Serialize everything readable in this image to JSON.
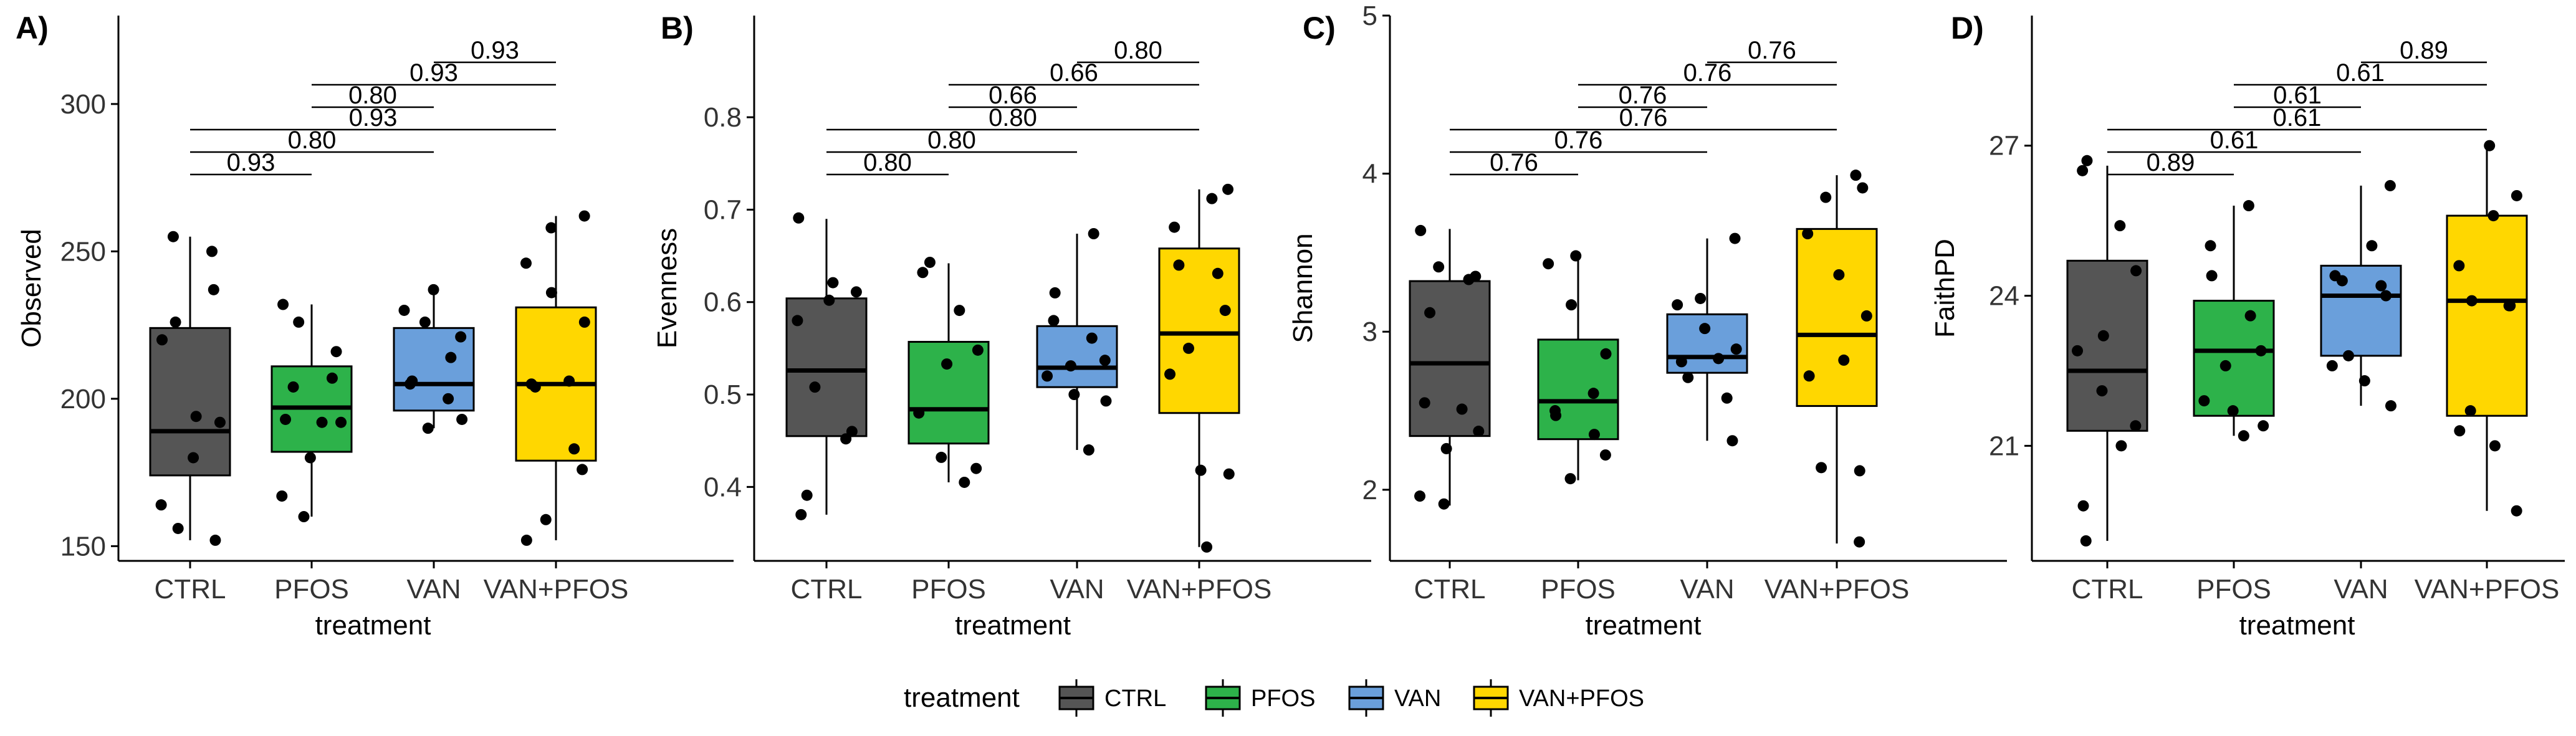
{
  "legend": {
    "title": "treatment",
    "items": [
      {
        "label": "CTRL",
        "color": "#555555"
      },
      {
        "label": "PFOS",
        "color": "#2db24a"
      },
      {
        "label": "VAN",
        "color": "#6a9fdb"
      },
      {
        "label": "VAN+PFOS",
        "color": "#ffd700"
      }
    ]
  },
  "chart_data": [
    {
      "type": "box",
      "panel_label": "A)",
      "xlabel": "treatment",
      "ylabel": "Observed",
      "categories": [
        "CTRL",
        "PFOS",
        "VAN",
        "VAN+PFOS"
      ],
      "ylim": [
        145,
        330
      ],
      "yticks": [
        150,
        200,
        250,
        300
      ],
      "boxes": [
        {
          "q1": 174,
          "median": 189,
          "q3": 224,
          "whisker_low": 152,
          "whisker_high": 255
        },
        {
          "q1": 182,
          "median": 197,
          "q3": 211,
          "whisker_low": 160,
          "whisker_high": 232
        },
        {
          "q1": 196,
          "median": 205,
          "q3": 224,
          "whisker_low": 190,
          "whisker_high": 237
        },
        {
          "q1": 179,
          "median": 205,
          "q3": 231,
          "whisker_low": 152,
          "whisker_high": 262
        }
      ],
      "points": [
        [
          255,
          250,
          237,
          226,
          220,
          194,
          192,
          180,
          164,
          156,
          152
        ],
        [
          232,
          226,
          216,
          207,
          204,
          193,
          192,
          192,
          180,
          167,
          160
        ],
        [
          237,
          230,
          226,
          221,
          214,
          206,
          205,
          200,
          193,
          190
        ],
        [
          262,
          258,
          246,
          236,
          226,
          206,
          205,
          204,
          183,
          176,
          159,
          152
        ]
      ],
      "comparisons": [
        {
          "from": "CTRL",
          "to": "PFOS",
          "label": "0.93"
        },
        {
          "from": "CTRL",
          "to": "VAN",
          "label": "0.80"
        },
        {
          "from": "CTRL",
          "to": "VAN+PFOS",
          "label": "0.93"
        },
        {
          "from": "PFOS",
          "to": "VAN",
          "label": "0.80"
        },
        {
          "from": "PFOS",
          "to": "VAN+PFOS",
          "label": "0.93"
        },
        {
          "from": "VAN",
          "to": "VAN+PFOS",
          "label": "0.93"
        }
      ]
    },
    {
      "type": "box",
      "panel_label": "B)",
      "xlabel": "treatment",
      "ylabel": "Evenness",
      "categories": [
        "CTRL",
        "PFOS",
        "VAN",
        "VAN+PFOS"
      ],
      "ylim": [
        0.32,
        0.91
      ],
      "yticks": [
        0.4,
        0.5,
        0.6,
        0.7,
        0.8
      ],
      "boxes": [
        {
          "q1": 0.455,
          "median": 0.526,
          "q3": 0.604,
          "whisker_low": 0.37,
          "whisker_high": 0.69
        },
        {
          "q1": 0.447,
          "median": 0.484,
          "q3": 0.557,
          "whisker_low": 0.405,
          "whisker_high": 0.642
        },
        {
          "q1": 0.508,
          "median": 0.529,
          "q3": 0.574,
          "whisker_low": 0.44,
          "whisker_high": 0.674
        },
        {
          "q1": 0.48,
          "median": 0.566,
          "q3": 0.658,
          "whisker_low": 0.335,
          "whisker_high": 0.722
        }
      ],
      "points": [
        [
          0.691,
          0.621,
          0.611,
          0.602,
          0.58,
          0.508,
          0.46,
          0.452,
          0.391,
          0.37
        ],
        [
          0.643,
          0.632,
          0.591,
          0.548,
          0.533,
          0.48,
          0.432,
          0.42,
          0.405
        ],
        [
          0.674,
          0.61,
          0.58,
          0.561,
          0.537,
          0.531,
          0.52,
          0.5,
          0.493,
          0.44
        ],
        [
          0.722,
          0.712,
          0.681,
          0.64,
          0.631,
          0.591,
          0.55,
          0.522,
          0.418,
          0.414,
          0.335
        ]
      ],
      "comparisons": [
        {
          "from": "CTRL",
          "to": "PFOS",
          "label": "0.80"
        },
        {
          "from": "CTRL",
          "to": "VAN",
          "label": "0.80"
        },
        {
          "from": "CTRL",
          "to": "VAN+PFOS",
          "label": "0.80"
        },
        {
          "from": "PFOS",
          "to": "VAN",
          "label": "0.66"
        },
        {
          "from": "PFOS",
          "to": "VAN+PFOS",
          "label": "0.66"
        },
        {
          "from": "VAN",
          "to": "VAN+PFOS",
          "label": "0.80"
        }
      ]
    },
    {
      "type": "box",
      "panel_label": "C)",
      "xlabel": "treatment",
      "ylabel": "Shannon",
      "categories": [
        "CTRL",
        "PFOS",
        "VAN",
        "VAN+PFOS"
      ],
      "ylim": [
        1.55,
        5.0
      ],
      "yticks": [
        2,
        3,
        4,
        5
      ],
      "boxes": [
        {
          "q1": 2.34,
          "median": 2.8,
          "q3": 3.32,
          "whisker_low": 1.9,
          "whisker_high": 3.65
        },
        {
          "q1": 2.32,
          "median": 2.56,
          "q3": 2.95,
          "whisker_low": 2.06,
          "whisker_high": 3.49
        },
        {
          "q1": 2.74,
          "median": 2.84,
          "q3": 3.11,
          "whisker_low": 2.31,
          "whisker_high": 3.59
        },
        {
          "q1": 2.53,
          "median": 2.98,
          "q3": 3.65,
          "whisker_low": 1.66,
          "whisker_high": 3.99
        }
      ],
      "points": [
        [
          3.64,
          3.41,
          3.35,
          3.33,
          3.12,
          2.55,
          2.51,
          2.37,
          2.26,
          1.96,
          1.91
        ],
        [
          3.48,
          3.43,
          3.17,
          2.86,
          2.61,
          2.5,
          2.47,
          2.35,
          2.22,
          2.07
        ],
        [
          3.59,
          3.21,
          3.17,
          3.02,
          2.89,
          2.83,
          2.81,
          2.71,
          2.58,
          2.31
        ],
        [
          3.99,
          3.91,
          3.85,
          3.62,
          3.36,
          3.1,
          2.82,
          2.72,
          2.14,
          2.12,
          1.67
        ]
      ],
      "comparisons": [
        {
          "from": "CTRL",
          "to": "PFOS",
          "label": "0.76"
        },
        {
          "from": "CTRL",
          "to": "VAN",
          "label": "0.76"
        },
        {
          "from": "CTRL",
          "to": "VAN+PFOS",
          "label": "0.76"
        },
        {
          "from": "PFOS",
          "to": "VAN",
          "label": "0.76"
        },
        {
          "from": "PFOS",
          "to": "VAN+PFOS",
          "label": "0.76"
        },
        {
          "from": "VAN",
          "to": "VAN+PFOS",
          "label": "0.76"
        }
      ]
    },
    {
      "type": "box",
      "panel_label": "D)",
      "xlabel": "treatment",
      "ylabel": "FaithPD",
      "categories": [
        "CTRL",
        "PFOS",
        "VAN",
        "VAN+PFOS"
      ],
      "ylim": [
        18.7,
        29.6
      ],
      "yticks": [
        21,
        24,
        27
      ],
      "boxes": [
        {
          "q1": 21.3,
          "median": 22.5,
          "q3": 24.7,
          "whisker_low": 19.1,
          "whisker_high": 26.6
        },
        {
          "q1": 21.6,
          "median": 22.9,
          "q3": 23.9,
          "whisker_low": 21.2,
          "whisker_high": 25.8
        },
        {
          "q1": 22.8,
          "median": 24.0,
          "q3": 24.6,
          "whisker_low": 21.8,
          "whisker_high": 26.2
        },
        {
          "q1": 21.6,
          "median": 23.9,
          "q3": 25.6,
          "whisker_low": 19.7,
          "whisker_high": 27.0
        }
      ],
      "points": [
        [
          26.7,
          26.5,
          25.4,
          24.5,
          23.2,
          22.9,
          22.1,
          21.4,
          21.0,
          19.8,
          19.1
        ],
        [
          25.8,
          25.0,
          24.4,
          23.6,
          22.9,
          22.6,
          21.9,
          21.7,
          21.4,
          21.2
        ],
        [
          26.2,
          25.0,
          24.4,
          24.3,
          24.2,
          24.0,
          22.8,
          22.6,
          22.3,
          21.8
        ],
        [
          27.0,
          26.0,
          25.6,
          24.6,
          23.9,
          23.8,
          23.8,
          21.7,
          21.3,
          21.0,
          19.7
        ]
      ],
      "comparisons": [
        {
          "from": "CTRL",
          "to": "PFOS",
          "label": "0.89"
        },
        {
          "from": "CTRL",
          "to": "VAN",
          "label": "0.61"
        },
        {
          "from": "CTRL",
          "to": "VAN+PFOS",
          "label": "0.61"
        },
        {
          "from": "PFOS",
          "to": "VAN",
          "label": "0.61"
        },
        {
          "from": "PFOS",
          "to": "VAN+PFOS",
          "label": "0.61"
        },
        {
          "from": "VAN",
          "to": "VAN+PFOS",
          "label": "0.89"
        }
      ]
    }
  ]
}
